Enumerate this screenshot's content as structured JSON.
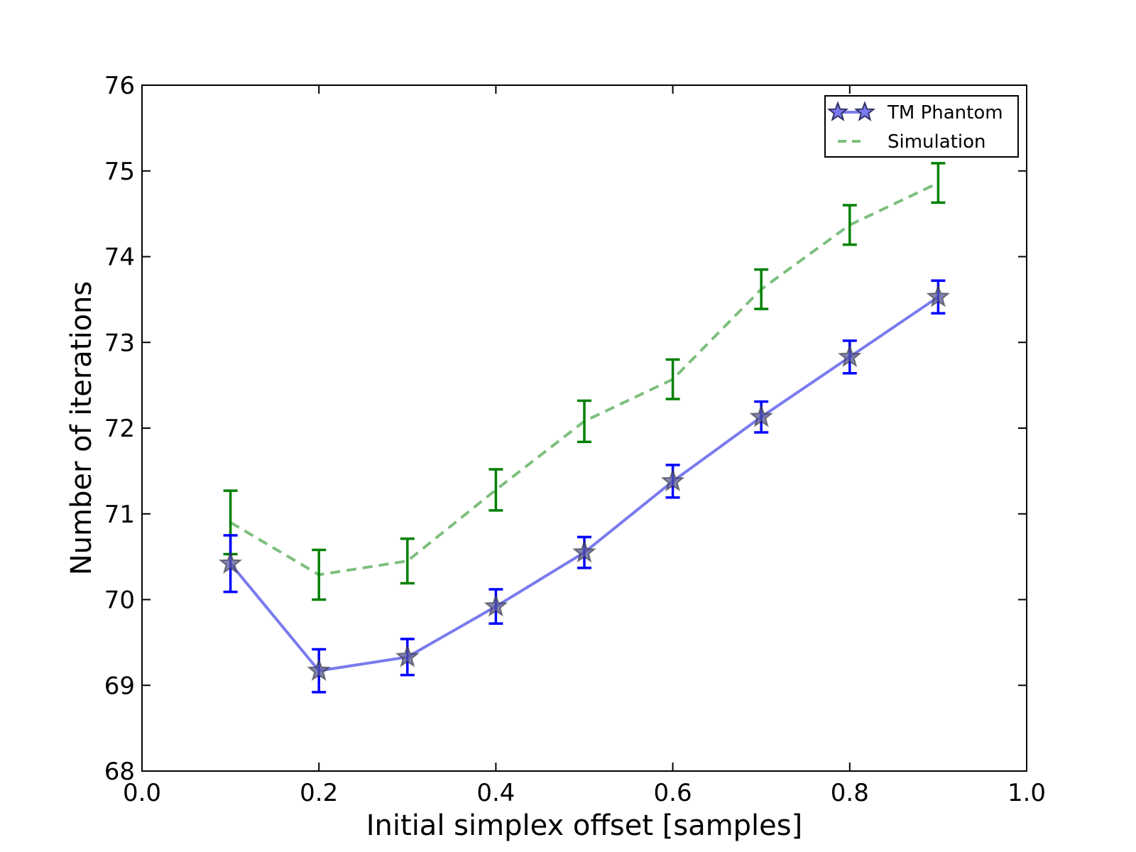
{
  "chart_data": {
    "type": "line",
    "xlabel": "Initial simplex offset [samples]",
    "ylabel": "Number of iterations",
    "xlim": [
      0.0,
      1.0
    ],
    "ylim": [
      68,
      76
    ],
    "xticks": [
      "0.0",
      "0.2",
      "0.4",
      "0.6",
      "0.8",
      "1.0"
    ],
    "yticks": [
      "68",
      "69",
      "70",
      "71",
      "72",
      "73",
      "74",
      "75",
      "76"
    ],
    "x": [
      0.1,
      0.2,
      0.3,
      0.4,
      0.5,
      0.6,
      0.7,
      0.8,
      0.9
    ],
    "grid": false,
    "legend_position": "top-right",
    "series": [
      {
        "name": "TM Phantom",
        "style": "solid line with star markers",
        "line_color": "#7a7aee",
        "marker_color": "#5a5a9a",
        "errorbar_color": "#0000ff",
        "values": [
          70.42,
          69.17,
          69.33,
          69.92,
          70.55,
          71.38,
          72.13,
          72.83,
          73.53
        ],
        "errors": [
          0.33,
          0.25,
          0.21,
          0.2,
          0.18,
          0.19,
          0.18,
          0.19,
          0.19
        ]
      },
      {
        "name": "Simulation",
        "style": "dashed line",
        "line_color": "#7dbf7d",
        "errorbar_color": "#008000",
        "values": [
          70.9,
          70.29,
          70.45,
          71.28,
          72.08,
          72.57,
          73.62,
          74.37,
          74.86
        ],
        "errors": [
          0.37,
          0.29,
          0.26,
          0.24,
          0.24,
          0.23,
          0.23,
          0.23,
          0.23
        ]
      }
    ]
  }
}
